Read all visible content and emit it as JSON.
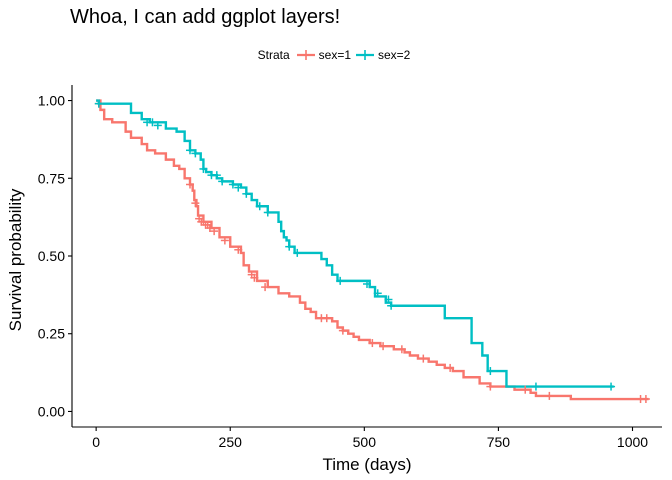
{
  "chart_data": {
    "type": "line",
    "title": "Whoa, I can add ggplot layers!",
    "xlabel": "Time (days)",
    "ylabel": "Survival probability",
    "xlim": [
      -45,
      1055
    ],
    "ylim": [
      -0.05,
      1.05
    ],
    "xticks": [
      0,
      250,
      500,
      750,
      1000
    ],
    "yticks": [
      0,
      0.25,
      0.5,
      0.75,
      1.0
    ],
    "xtick_labels": [
      "0",
      "250",
      "500",
      "750",
      "1000"
    ],
    "ytick_labels": [
      "0.00",
      "0.25",
      "0.50",
      "0.75",
      "1.00"
    ],
    "legend": {
      "title": "Strata",
      "position": "top",
      "entries": [
        "sex=1",
        "sex=2"
      ]
    },
    "grid": false,
    "series": [
      {
        "name": "sex=1",
        "color": "#F8766D",
        "step": [
          [
            0,
            1.0
          ],
          [
            8,
            0.97
          ],
          [
            15,
            0.94
          ],
          [
            30,
            0.93
          ],
          [
            55,
            0.9
          ],
          [
            65,
            0.88
          ],
          [
            85,
            0.86
          ],
          [
            95,
            0.84
          ],
          [
            110,
            0.83
          ],
          [
            130,
            0.81
          ],
          [
            145,
            0.79
          ],
          [
            155,
            0.78
          ],
          [
            165,
            0.75
          ],
          [
            175,
            0.73
          ],
          [
            180,
            0.71
          ],
          [
            183,
            0.68
          ],
          [
            187,
            0.66
          ],
          [
            190,
            0.63
          ],
          [
            200,
            0.61
          ],
          [
            215,
            0.59
          ],
          [
            230,
            0.56
          ],
          [
            250,
            0.53
          ],
          [
            270,
            0.51
          ],
          [
            275,
            0.47
          ],
          [
            285,
            0.45
          ],
          [
            300,
            0.42
          ],
          [
            320,
            0.4
          ],
          [
            340,
            0.38
          ],
          [
            360,
            0.37
          ],
          [
            380,
            0.35
          ],
          [
            390,
            0.33
          ],
          [
            400,
            0.32
          ],
          [
            410,
            0.3
          ],
          [
            440,
            0.29
          ],
          [
            450,
            0.27
          ],
          [
            460,
            0.26
          ],
          [
            470,
            0.25
          ],
          [
            480,
            0.24
          ],
          [
            490,
            0.23
          ],
          [
            510,
            0.22
          ],
          [
            530,
            0.21
          ],
          [
            555,
            0.2
          ],
          [
            575,
            0.19
          ],
          [
            585,
            0.18
          ],
          [
            600,
            0.17
          ],
          [
            620,
            0.16
          ],
          [
            635,
            0.15
          ],
          [
            650,
            0.14
          ],
          [
            665,
            0.13
          ],
          [
            685,
            0.11
          ],
          [
            715,
            0.09
          ],
          [
            735,
            0.08
          ],
          [
            780,
            0.07
          ],
          [
            810,
            0.06
          ],
          [
            820,
            0.05
          ],
          [
            885,
            0.04
          ],
          [
            1030,
            0.04
          ]
        ],
        "censored": [
          [
            5,
            0.99
          ],
          [
            175,
            0.73
          ],
          [
            185,
            0.67
          ],
          [
            192,
            0.62
          ],
          [
            196,
            0.61
          ],
          [
            200,
            0.61
          ],
          [
            204,
            0.6
          ],
          [
            208,
            0.6
          ],
          [
            212,
            0.59
          ],
          [
            220,
            0.58
          ],
          [
            240,
            0.55
          ],
          [
            265,
            0.52
          ],
          [
            290,
            0.44
          ],
          [
            295,
            0.43
          ],
          [
            315,
            0.4
          ],
          [
            420,
            0.3
          ],
          [
            430,
            0.3
          ],
          [
            460,
            0.26
          ],
          [
            515,
            0.22
          ],
          [
            535,
            0.21
          ],
          [
            570,
            0.2
          ],
          [
            610,
            0.17
          ],
          [
            660,
            0.14
          ],
          [
            735,
            0.08
          ],
          [
            800,
            0.07
          ],
          [
            845,
            0.05
          ],
          [
            1015,
            0.04
          ],
          [
            1025,
            0.04
          ]
        ]
      },
      {
        "name": "sex=2",
        "color": "#00BFC4",
        "step": [
          [
            0,
            1.0
          ],
          [
            5,
            0.99
          ],
          [
            65,
            0.96
          ],
          [
            85,
            0.94
          ],
          [
            100,
            0.93
          ],
          [
            130,
            0.91
          ],
          [
            150,
            0.9
          ],
          [
            165,
            0.87
          ],
          [
            175,
            0.84
          ],
          [
            185,
            0.83
          ],
          [
            195,
            0.81
          ],
          [
            200,
            0.78
          ],
          [
            205,
            0.77
          ],
          [
            215,
            0.76
          ],
          [
            225,
            0.75
          ],
          [
            235,
            0.74
          ],
          [
            255,
            0.73
          ],
          [
            270,
            0.72
          ],
          [
            280,
            0.7
          ],
          [
            290,
            0.68
          ],
          [
            300,
            0.66
          ],
          [
            320,
            0.64
          ],
          [
            340,
            0.61
          ],
          [
            345,
            0.58
          ],
          [
            350,
            0.56
          ],
          [
            355,
            0.55
          ],
          [
            360,
            0.53
          ],
          [
            370,
            0.51
          ],
          [
            420,
            0.49
          ],
          [
            430,
            0.47
          ],
          [
            440,
            0.44
          ],
          [
            450,
            0.42
          ],
          [
            510,
            0.4
          ],
          [
            520,
            0.37
          ],
          [
            540,
            0.35
          ],
          [
            550,
            0.34
          ],
          [
            650,
            0.3
          ],
          [
            700,
            0.22
          ],
          [
            720,
            0.18
          ],
          [
            730,
            0.13
          ],
          [
            765,
            0.08
          ],
          [
            965,
            0.08
          ]
        ],
        "censored": [
          [
            5,
            0.99
          ],
          [
            95,
            0.93
          ],
          [
            105,
            0.93
          ],
          [
            115,
            0.92
          ],
          [
            175,
            0.84
          ],
          [
            185,
            0.83
          ],
          [
            200,
            0.78
          ],
          [
            215,
            0.76
          ],
          [
            225,
            0.76
          ],
          [
            235,
            0.74
          ],
          [
            255,
            0.73
          ],
          [
            265,
            0.72
          ],
          [
            280,
            0.7
          ],
          [
            305,
            0.66
          ],
          [
            320,
            0.64
          ],
          [
            360,
            0.53
          ],
          [
            375,
            0.51
          ],
          [
            455,
            0.42
          ],
          [
            505,
            0.41
          ],
          [
            525,
            0.38
          ],
          [
            545,
            0.36
          ],
          [
            550,
            0.34
          ],
          [
            735,
            0.13
          ],
          [
            820,
            0.08
          ],
          [
            960,
            0.08
          ]
        ]
      }
    ]
  }
}
